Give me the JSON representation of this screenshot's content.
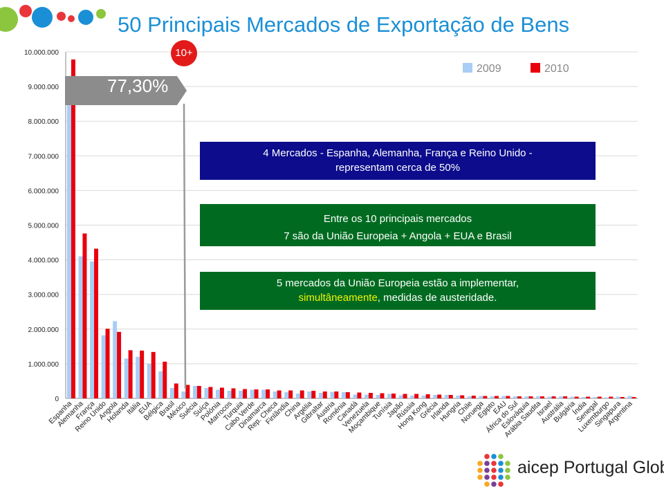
{
  "title": "50 Principais Mercados de Exportação de Bens",
  "badge": "10+",
  "arrow_label": "77,30%",
  "boxes": {
    "b1_line1": "4 Mercados - Espanha, Alemanha, França e Reino Unido -",
    "b1_line2": "representam cerca de 50%",
    "b2_line1": "Entre os 10 principais mercados",
    "b2_line2": "7 são da União Europeia + Angola + EUA e Brasil",
    "b3_line1": "5 mercados da União Europeia estão a implementar,",
    "b3_hl": "simultâneamente",
    "b3_rest": ", medidas de austeridade."
  },
  "logo": {
    "text": "aicep Portugal Global"
  },
  "colors": {
    "s2009": "#a9cdf5",
    "s2010": "#e8000d",
    "title": "#1a8fd6",
    "box_blue": "#0c0c8c",
    "box_green": "#006b20"
  },
  "chart_data": {
    "type": "bar",
    "ylim": [
      0,
      10000000
    ],
    "yticks": [
      "0",
      "1.000.000",
      "2.000.000",
      "3.000.000",
      "4.000.000",
      "5.000.000",
      "6.000.000",
      "7.000.000",
      "8.000.000",
      "9.000.000",
      "10.000.000"
    ],
    "legend_position": "top-right",
    "categories": [
      "Espanha",
      "Alemanha",
      "França",
      "Reino Unido",
      "Angola",
      "Holanda",
      "Itália",
      "EUA",
      "Bélgica",
      "Brasil",
      "México",
      "Suécia",
      "Suíça",
      "Polónia",
      "Marrocos",
      "Turquia",
      "Cabo Verde",
      "Dinamarca",
      "Rep. Checa",
      "Finlândia",
      "China",
      "Argélia",
      "Gibraltar",
      "Áustria",
      "Roménia",
      "Canadá",
      "Venezuela",
      "Moçambique",
      "Tunísia",
      "Japão",
      "Rússia",
      "Hong Kong",
      "Grécia",
      "Irlanda",
      "Hungria",
      "Chile",
      "Noruega",
      "Egipto",
      "EAU",
      "África do Sul",
      "Eslováquia",
      "Arábia Saudita",
      "Israel",
      "Austrália",
      "Bulgária",
      "Índia",
      "Senegal",
      "Luxemburgo",
      "Singapura",
      "Argentina"
    ],
    "series": [
      {
        "name": "2009",
        "values": [
          8600000,
          4100000,
          3950000,
          1820000,
          2230000,
          1150000,
          1200000,
          1000000,
          780000,
          300000,
          200000,
          360000,
          300000,
          250000,
          220000,
          220000,
          250000,
          250000,
          200000,
          180000,
          140000,
          200000,
          160000,
          190000,
          180000,
          110000,
          110000,
          100000,
          130000,
          90000,
          80000,
          80000,
          100000,
          100000,
          80000,
          60000,
          70000,
          60000,
          70000,
          60000,
          60000,
          60000,
          50000,
          60000,
          50000,
          40000,
          40000,
          30000,
          50000,
          70000
        ]
      },
      {
        "name": "2010",
        "values": [
          9780000,
          4760000,
          4320000,
          2010000,
          1920000,
          1390000,
          1380000,
          1340000,
          1060000,
          430000,
          390000,
          360000,
          330000,
          310000,
          290000,
          270000,
          260000,
          260000,
          230000,
          230000,
          230000,
          220000,
          200000,
          200000,
          180000,
          170000,
          160000,
          150000,
          140000,
          130000,
          130000,
          120000,
          110000,
          100000,
          90000,
          80000,
          70000,
          70000,
          70000,
          60000,
          60000,
          60000,
          60000,
          60000,
          50000,
          50000,
          50000,
          50000,
          40000,
          40000
        ]
      }
    ]
  }
}
